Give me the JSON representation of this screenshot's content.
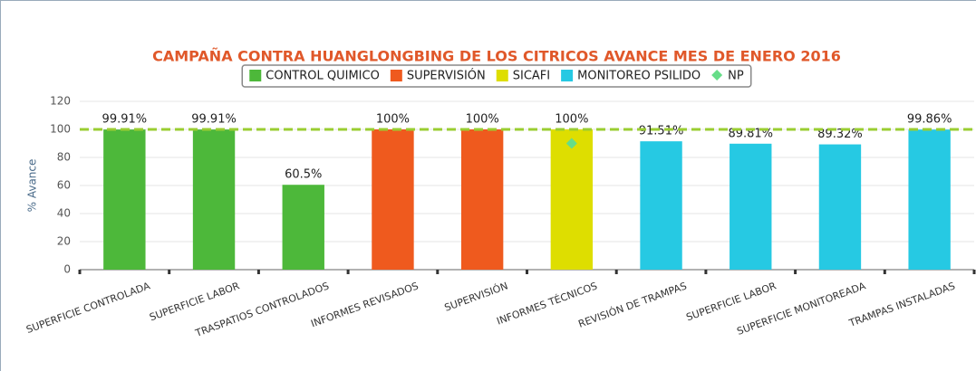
{
  "chart_data": {
    "type": "bar",
    "title": "CAMPAÑA CONTRA HUANGLONGBING DE LOS CITRICOS AVANCE MES DE ENERO 2016",
    "y_label": "% Avance",
    "categories": [
      "SUPERFICIE CONTROLADA",
      "SUPERFICIE LABOR",
      "TRASPATIOS CONTROLADOS",
      "INFORMES REVISADOS",
      "SUPERVISIÓN",
      "INFORMES TÉCNICOS",
      "REVISIÓN DE TRAMPAS",
      "SUPERFICIE LABOR",
      "SUPERFICIE MONITOREADA",
      "TRAMPAS INSTALADAS"
    ],
    "series": [
      {
        "name": "CONTROL QUIMICO",
        "color": "#4db83a",
        "values": [
          99.91,
          99.91,
          60.5,
          null,
          null,
          null,
          null,
          null,
          null,
          null
        ],
        "value_labels": [
          "99.91%",
          "99.91%",
          "60.5%",
          null,
          null,
          null,
          null,
          null,
          null,
          null
        ]
      },
      {
        "name": "SUPERVISIÓN",
        "color": "#ef5a1e",
        "values": [
          null,
          null,
          null,
          100,
          100,
          null,
          null,
          null,
          null,
          null
        ],
        "value_labels": [
          null,
          null,
          null,
          "100%",
          "100%",
          null,
          null,
          null,
          null,
          null
        ]
      },
      {
        "name": "SICAFI",
        "color": "#dede00",
        "values": [
          null,
          null,
          null,
          null,
          null,
          100,
          null,
          null,
          null,
          null
        ],
        "value_labels": [
          null,
          null,
          null,
          null,
          null,
          "100%",
          null,
          null,
          null,
          null
        ]
      },
      {
        "name": "MONITOREO PSILIDO",
        "color": "#26c9e3",
        "values": [
          null,
          null,
          null,
          null,
          null,
          null,
          91.51,
          89.81,
          89.32,
          99.86
        ],
        "value_labels": [
          null,
          null,
          null,
          null,
          null,
          null,
          "91.51%",
          "89.81%",
          "89.32%",
          "99.86%"
        ]
      },
      {
        "name": "NP",
        "color": "#66dd88",
        "marker": "diamond",
        "values": [
          null,
          null,
          null,
          null,
          null,
          90,
          null,
          null,
          null,
          null
        ]
      }
    ],
    "reference_line": {
      "value": 100,
      "color": "#9acd32"
    },
    "ylim": [
      0,
      120
    ],
    "yticks": [
      0,
      20,
      40,
      60,
      80,
      100,
      120
    ],
    "grid": true,
    "legend": "top"
  }
}
